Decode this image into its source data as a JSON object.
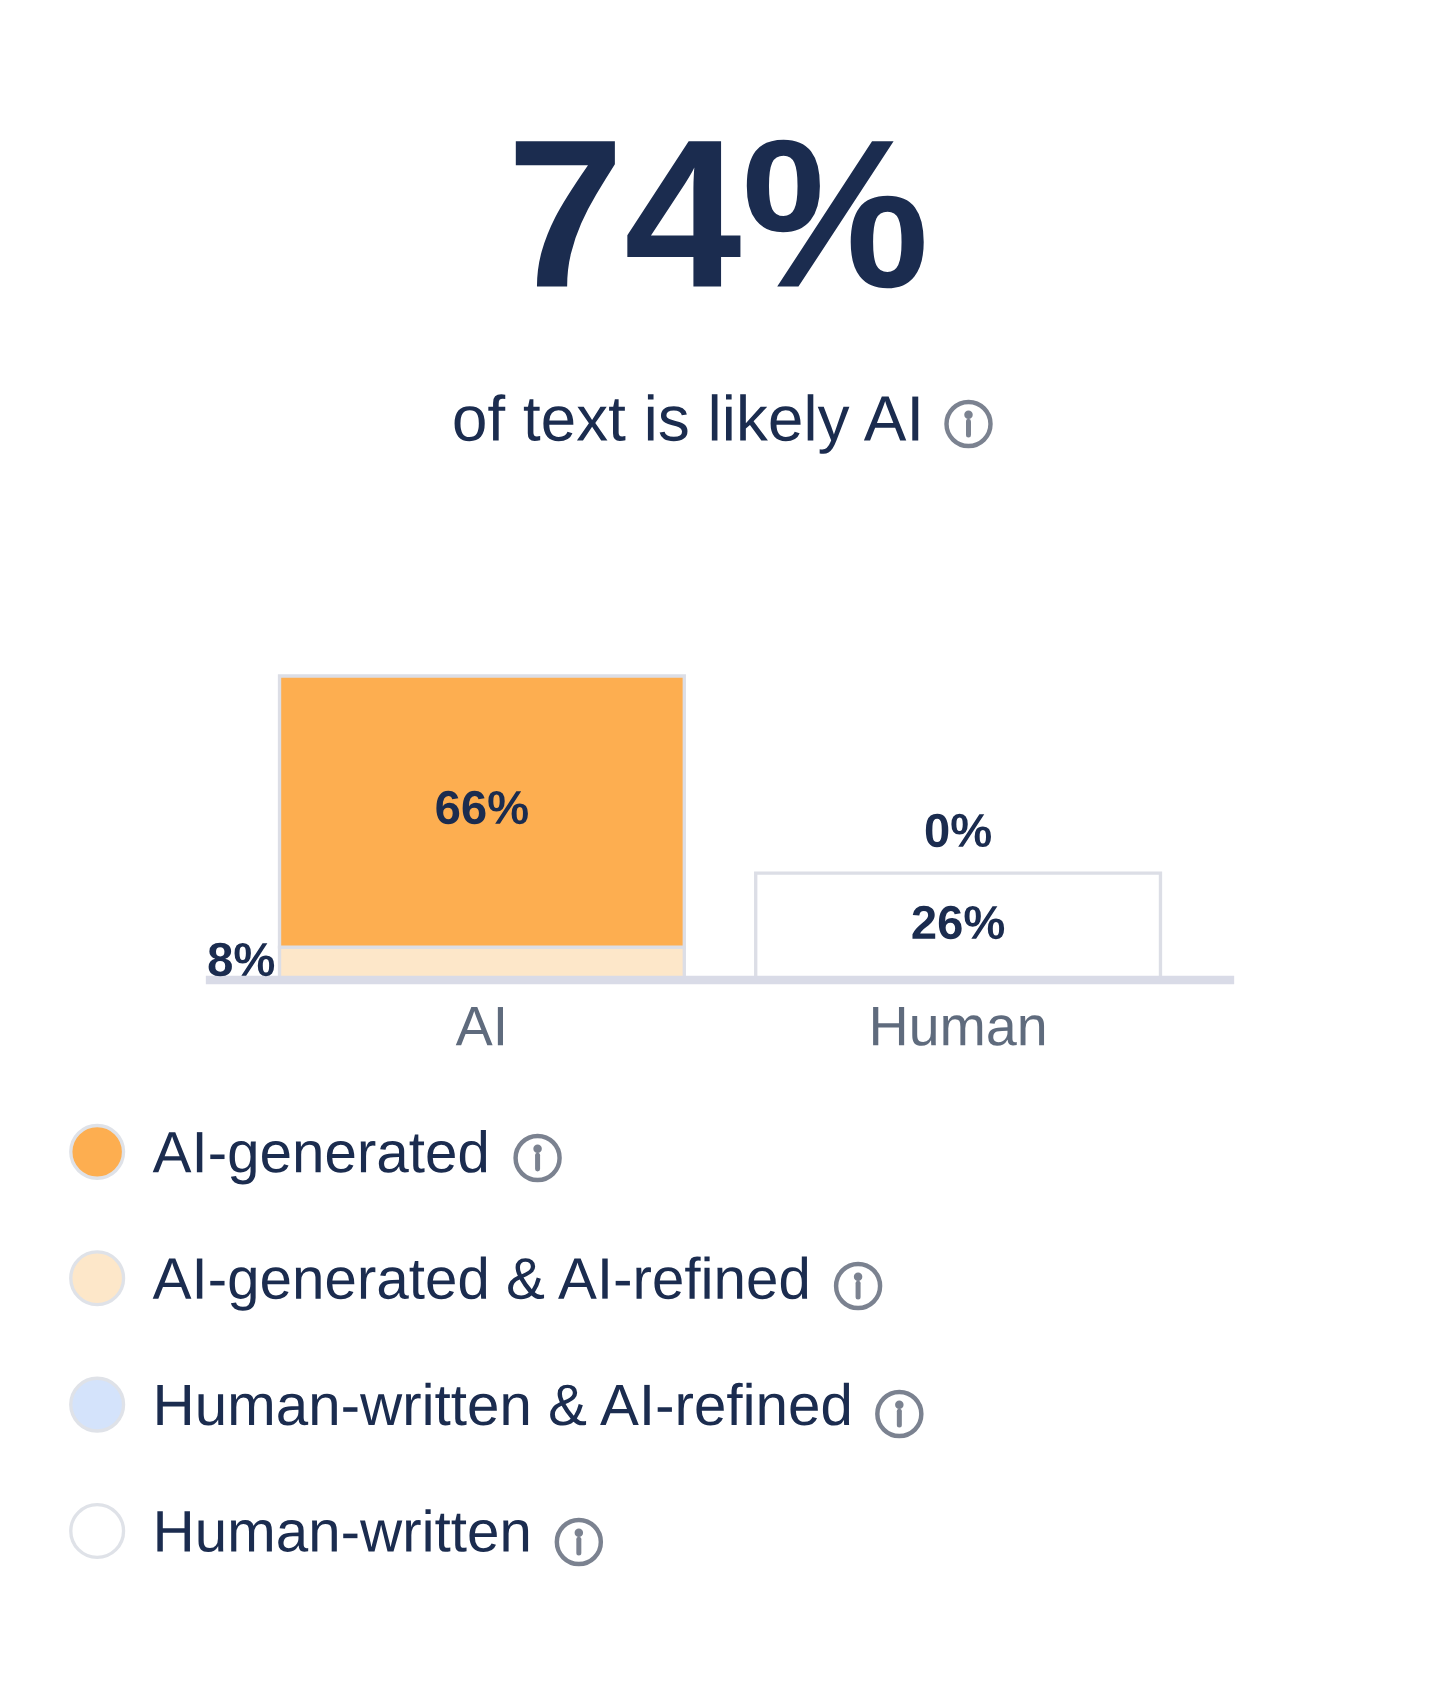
{
  "chart_data": {
    "type": "bar",
    "title": "74%",
    "subtitle": "of text is likely AI",
    "categories": [
      "AI",
      "Human"
    ],
    "stacked": true,
    "legend": "bottom",
    "series": [
      {
        "name": "Human-written",
        "color": "#ffffff",
        "values": [
          null,
          26
        ],
        "value_labels": [
          null,
          "26%"
        ]
      },
      {
        "name": "Human-written & AI-refined",
        "color": "#d4e3fb",
        "values": [
          null,
          0
        ],
        "value_labels": [
          null,
          "0%"
        ]
      },
      {
        "name": "AI-generated & AI-refined",
        "color": "#fde7c9",
        "values": [
          8,
          null
        ],
        "value_labels": [
          "8%",
          null
        ]
      },
      {
        "name": "AI-generated",
        "color": "#fdae50",
        "values": [
          66,
          null
        ],
        "value_labels": [
          "66%",
          null
        ]
      }
    ]
  }
}
